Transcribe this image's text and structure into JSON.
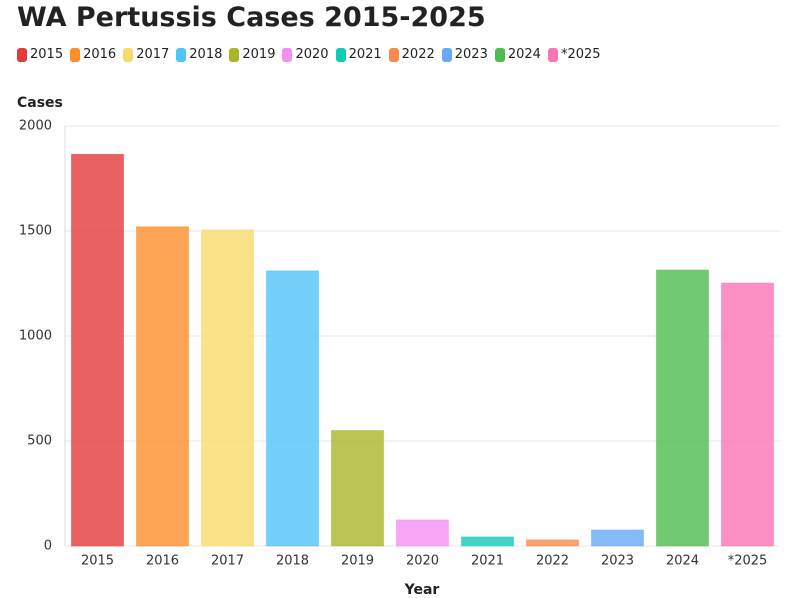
{
  "chart_data": {
    "type": "bar",
    "title": "WA Pertussis Cases 2015-2025",
    "categories": [
      "2015",
      "2016",
      "2017",
      "2018",
      "2019",
      "2020",
      "2021",
      "2022",
      "2023",
      "2024",
      "*2025"
    ],
    "values": [
      1865,
      1520,
      1505,
      1310,
      550,
      124,
      43,
      29,
      76,
      1314,
      1252
    ],
    "colors": [
      "#e23b3b",
      "#fd8f2a",
      "#f7db6a",
      "#4fc4f9",
      "#a9b62a",
      "#f58ef2",
      "#13c9b8",
      "#fb8a48",
      "#67a9f7",
      "#4dbb4d",
      "#fb74b3"
    ],
    "ylabel": "Cases",
    "xlabel": "Year",
    "ylim": [
      0,
      2000
    ],
    "yticks": [
      0,
      500,
      1000,
      1500,
      2000
    ],
    "grid": true
  }
}
